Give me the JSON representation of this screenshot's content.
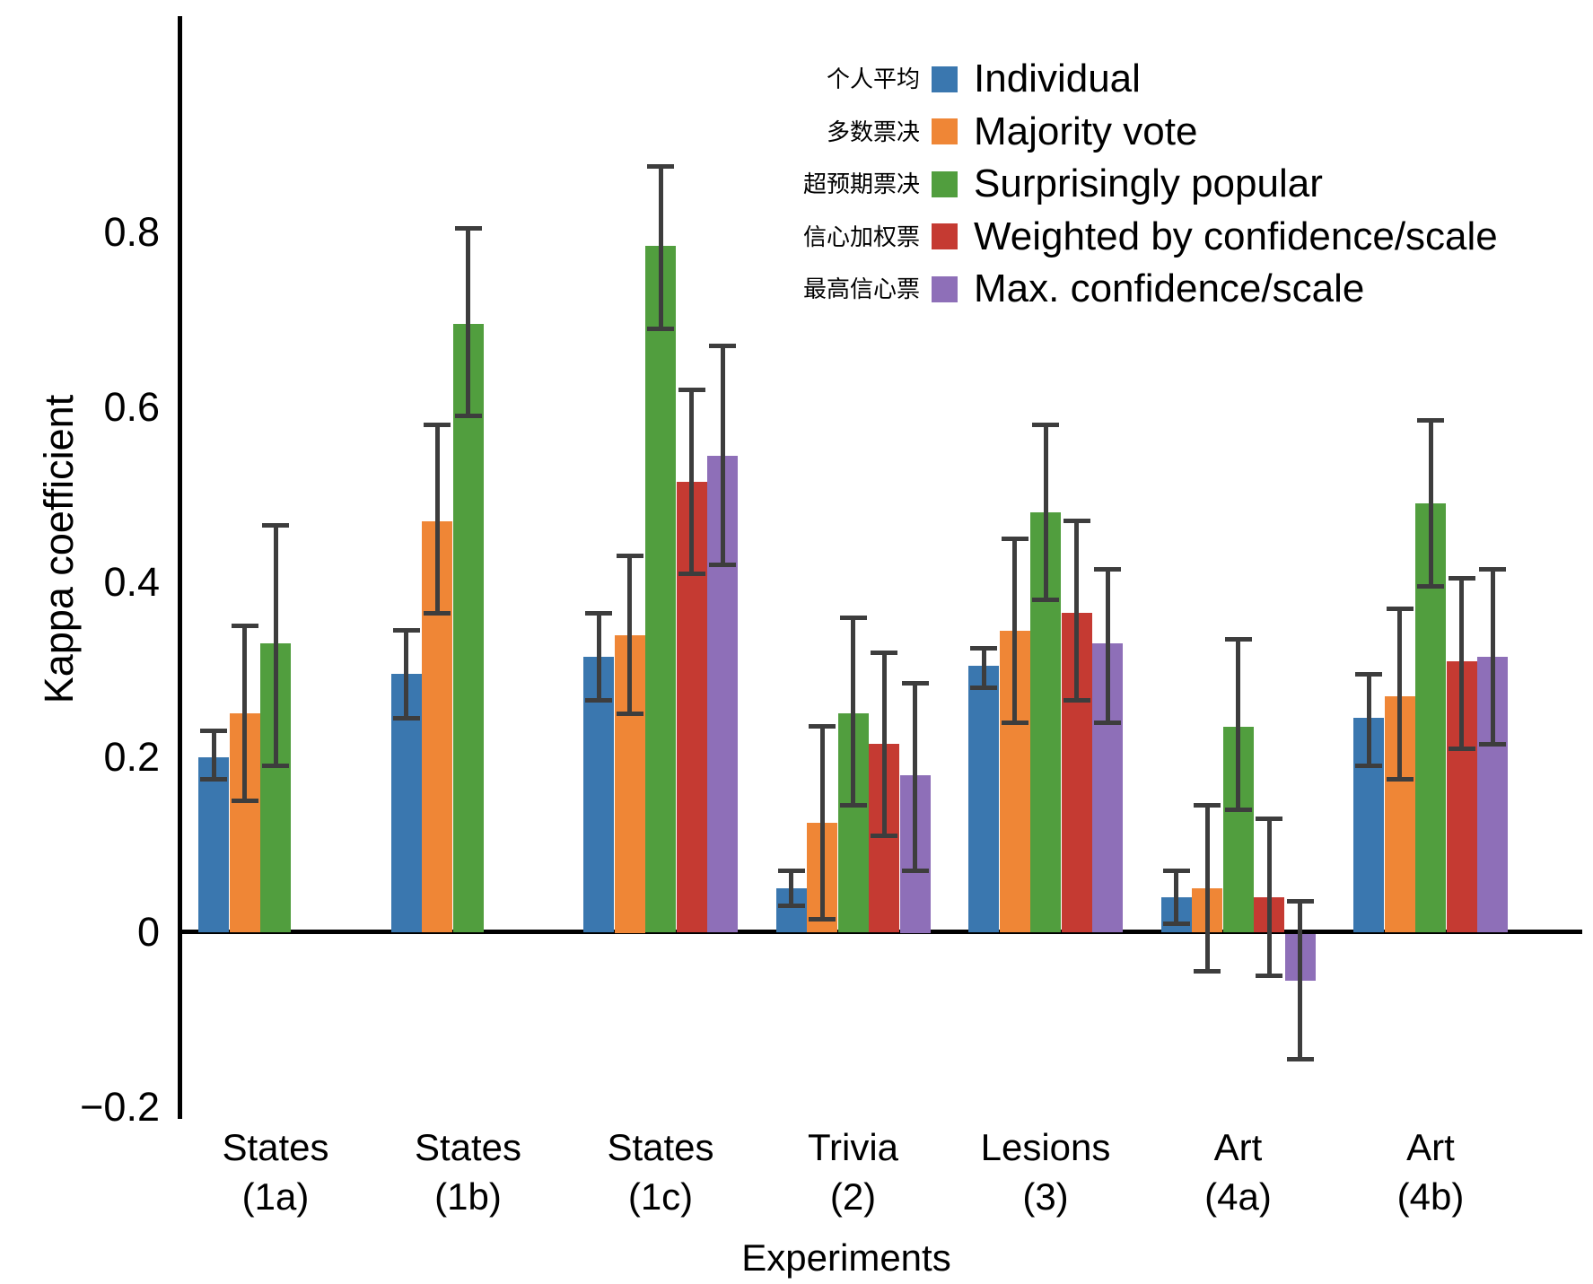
{
  "chart_data": {
    "type": "bar",
    "title": "",
    "xlabel": "Experiments",
    "ylabel": "Kappa coefficient",
    "ylim": [
      -0.25,
      1.05
    ],
    "yticks": [
      0.8,
      0.6,
      0.4,
      0.2,
      0,
      -0.2
    ],
    "ytick_labels": [
      "0.8",
      "0.6",
      "0.4",
      "0.2",
      "0",
      "−0.2"
    ],
    "grid": false,
    "legend_position": "upper right inside",
    "error_bar_color": "#3D3D3D",
    "categories": [
      {
        "key": "states-1a",
        "line1": "States",
        "line2": "(1a)"
      },
      {
        "key": "states-1b",
        "line1": "States",
        "line2": "(1b)"
      },
      {
        "key": "states-1c",
        "line1": "States",
        "line2": "(1c)"
      },
      {
        "key": "trivia-2",
        "line1": "Trivia",
        "line2": "(2)"
      },
      {
        "key": "lesions-3",
        "line1": "Lesions",
        "line2": "(3)"
      },
      {
        "key": "art-4a",
        "line1": "Art",
        "line2": "(4a)"
      },
      {
        "key": "art-4b",
        "line1": "Art",
        "line2": "(4b)"
      }
    ],
    "series": [
      {
        "key": "individual",
        "name": "Individual",
        "name_cn": "个人平均",
        "color": "#3A77AF",
        "values": [
          0.2,
          0.295,
          0.315,
          0.05,
          0.305,
          0.04,
          0.245
        ],
        "ci_low": [
          0.175,
          0.245,
          0.265,
          0.03,
          0.28,
          0.01,
          0.19
        ],
        "ci_high": [
          0.23,
          0.345,
          0.365,
          0.07,
          0.325,
          0.07,
          0.295
        ]
      },
      {
        "key": "majority-vote",
        "name": "Majority vote",
        "name_cn": "多数票决",
        "color": "#EF8636",
        "values": [
          0.25,
          0.47,
          0.34,
          0.125,
          0.345,
          0.05,
          0.27
        ],
        "ci_low": [
          0.15,
          0.365,
          0.25,
          0.015,
          0.24,
          -0.045,
          0.175
        ],
        "ci_high": [
          0.35,
          0.58,
          0.43,
          0.235,
          0.45,
          0.145,
          0.37
        ]
      },
      {
        "key": "surprisingly-popular",
        "name": "Surprisingly popular",
        "name_cn": "超预期票决",
        "color": "#519E3E",
        "values": [
          0.33,
          0.695,
          0.785,
          0.25,
          0.48,
          0.235,
          0.49
        ],
        "ci_low": [
          0.19,
          0.59,
          0.69,
          0.145,
          0.38,
          0.14,
          0.395
        ],
        "ci_high": [
          0.465,
          0.805,
          0.875,
          0.36,
          0.58,
          0.335,
          0.585
        ]
      },
      {
        "key": "weighted-confidence",
        "name": "Weighted by confidence/scale",
        "name_cn": "信心加权票",
        "color": "#C53A32",
        "values": [
          null,
          null,
          0.515,
          0.215,
          0.365,
          0.04,
          0.31
        ],
        "ci_low": [
          null,
          null,
          0.41,
          0.11,
          0.265,
          -0.05,
          0.21
        ],
        "ci_high": [
          null,
          null,
          0.62,
          0.32,
          0.47,
          0.13,
          0.405
        ]
      },
      {
        "key": "max-confidence",
        "name": "Max. confidence/scale",
        "name_cn": "最高信心票",
        "color": "#8E6FB8",
        "values": [
          null,
          null,
          0.545,
          0.18,
          0.33,
          -0.055,
          0.315
        ],
        "ci_low": [
          null,
          null,
          0.42,
          0.07,
          0.24,
          -0.145,
          0.215
        ],
        "ci_high": [
          null,
          null,
          0.67,
          0.285,
          0.415,
          0.035,
          0.415
        ]
      }
    ]
  }
}
